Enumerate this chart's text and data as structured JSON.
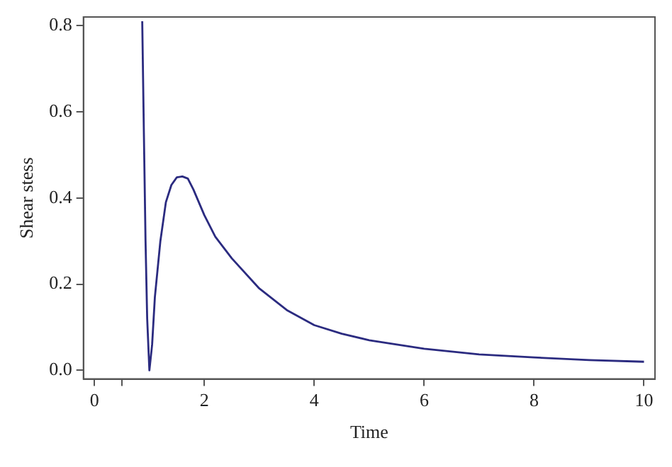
{
  "chart_data": {
    "type": "line",
    "xlabel": "Time",
    "ylabel": "Shear stess",
    "x": [
      0.87,
      0.9,
      0.93,
      0.96,
      1.0,
      1.05,
      1.1,
      1.2,
      1.3,
      1.4,
      1.5,
      1.6,
      1.7,
      1.8,
      2.0,
      2.2,
      2.5,
      3.0,
      3.5,
      4.0,
      4.5,
      5.0,
      6.0,
      7.0,
      8.0,
      9.0,
      10.0
    ],
    "series": [
      {
        "color": "#2b2b80",
        "values": [
          0.81,
          0.55,
          0.3,
          0.12,
          0.0,
          0.06,
          0.17,
          0.3,
          0.39,
          0.43,
          0.448,
          0.45,
          0.445,
          0.42,
          0.36,
          0.31,
          0.26,
          0.19,
          0.14,
          0.105,
          0.085,
          0.07,
          0.05,
          0.037,
          0.03,
          0.024,
          0.02
        ]
      }
    ],
    "xlim": [
      -0.2,
      10.2
    ],
    "xticks": [
      0,
      {
        "value": 0.5,
        "label": null
      },
      2,
      4,
      6,
      8,
      10
    ],
    "ylim": [
      -0.02,
      0.82
    ],
    "yticks": [
      {
        "value": 0,
        "label": "0.0"
      },
      0.2,
      0.4,
      0.6,
      0.8
    ],
    "grid": false,
    "legend": false,
    "marker": "none",
    "line_style": "solid"
  }
}
